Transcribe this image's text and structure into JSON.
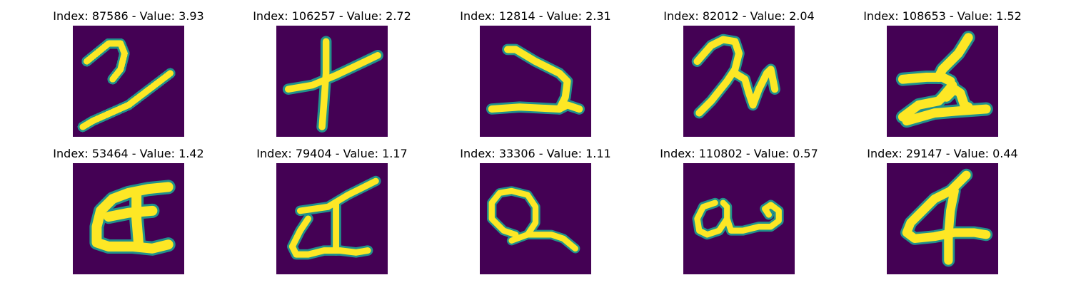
{
  "panels": [
    {
      "title": "Index: 87586 - Value: 3.93",
      "glyph": "handwritten 2-like stroke with long diagonal"
    },
    {
      "title": "Index: 106257 - Value: 2.72",
      "glyph": "cross-like stroke"
    },
    {
      "title": "Index: 12814 - Value: 2.31",
      "glyph": "zigzag stroke"
    },
    {
      "title": "Index: 82012 - Value: 2.04",
      "glyph": "cursive h-like stroke"
    },
    {
      "title": "Index: 108653 - Value: 1.52",
      "glyph": "z-like stroke"
    },
    {
      "title": "Index: 53464 - Value: 1.42",
      "glyph": "bold a-like stroke"
    },
    {
      "title": "Index: 79404 - Value: 1.17",
      "glyph": "triangle with line stroke"
    },
    {
      "title": "Index: 33306 - Value: 1.11",
      "glyph": "loop with underline stroke"
    },
    {
      "title": "Index: 110802 - Value: 0.57",
      "glyph": "cursive a-like stroke"
    },
    {
      "title": "Index: 29147 - Value: 0.44",
      "glyph": "digit 4-like stroke"
    }
  ],
  "colors": {
    "background": "#440154",
    "edge": "#21918c",
    "stroke": "#fde725",
    "stroke_mid": "#b5de2b"
  }
}
